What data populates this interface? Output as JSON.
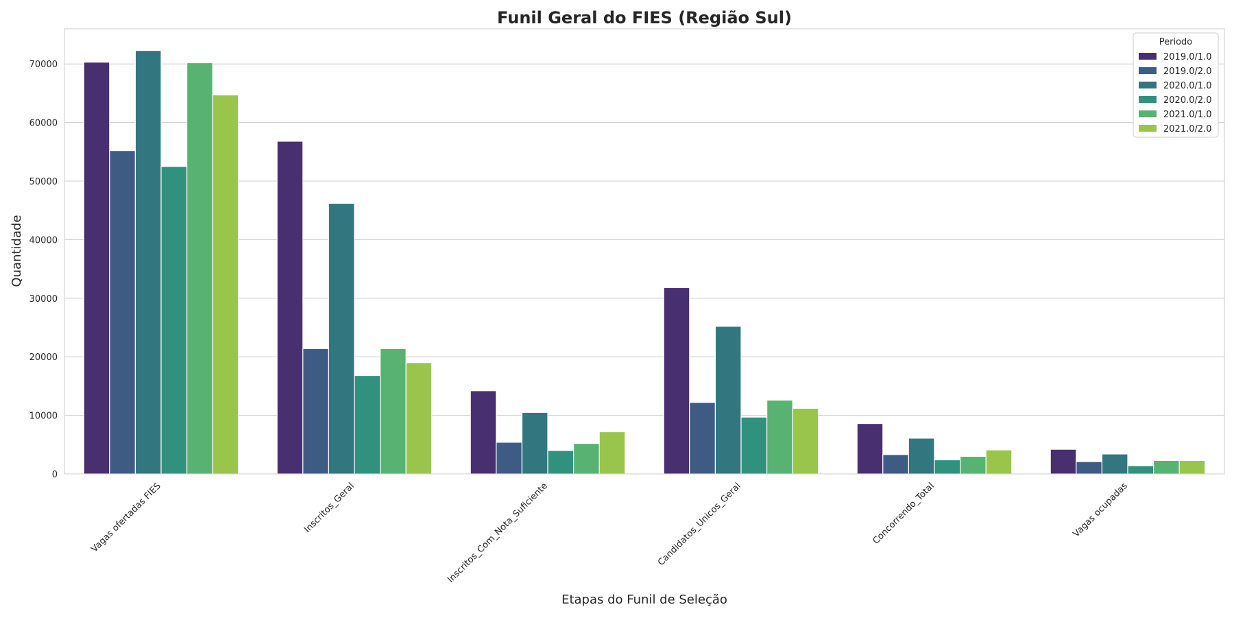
{
  "chart_data": {
    "type": "bar",
    "title": "Funil Geral do FIES (Região Sul)",
    "xlabel": "Etapas do Funil de Seleção",
    "ylabel": "Quantidade",
    "ylim": [
      0,
      76000
    ],
    "yticks": [
      0,
      10000,
      20000,
      30000,
      40000,
      50000,
      60000,
      70000
    ],
    "grid": true,
    "legend": {
      "title": "Periodo",
      "position": "top-right"
    },
    "categories": [
      "Vagas ofertadas FIES",
      "Inscritos_Geral",
      "Inscritos_Com_Nota_Suficiente",
      "Candidatos_Unicos_Geral",
      "Concorrendo_Total",
      "Vagas ocupadas"
    ],
    "series": [
      {
        "name": "2019.0/1.0",
        "color": "#482f70",
        "values": [
          70300,
          56800,
          14200,
          31800,
          8600,
          4200
        ]
      },
      {
        "name": "2019.0/2.0",
        "color": "#3e5b84",
        "values": [
          55200,
          21400,
          5400,
          12200,
          3300,
          2100
        ]
      },
      {
        "name": "2020.0/1.0",
        "color": "#32767f",
        "values": [
          72300,
          46200,
          10500,
          25200,
          6100,
          3400
        ]
      },
      {
        "name": "2020.0/2.0",
        "color": "#2f917e",
        "values": [
          52500,
          16800,
          4000,
          9700,
          2400,
          1400
        ]
      },
      {
        "name": "2021.0/1.0",
        "color": "#58b271",
        "values": [
          70200,
          21400,
          5200,
          12600,
          3000,
          2300
        ]
      },
      {
        "name": "2021.0/2.0",
        "color": "#9ac54d",
        "values": [
          64700,
          19000,
          7200,
          11200,
          4100,
          2300
        ]
      }
    ]
  }
}
